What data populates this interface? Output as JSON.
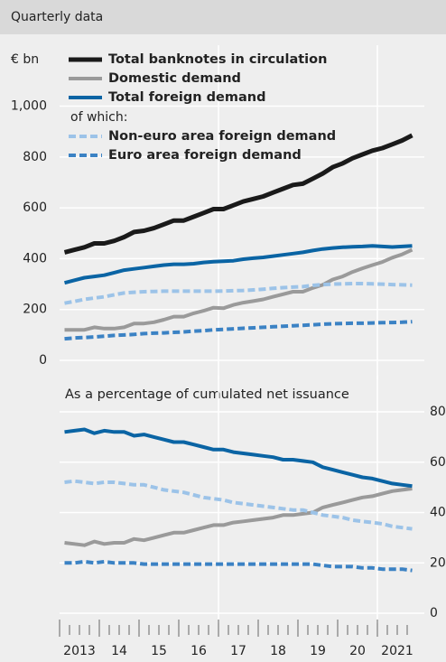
{
  "header": "Quarterly data",
  "chart_data": [
    {
      "type": "line",
      "y_label": "€ bn",
      "legend_note": "of which:",
      "x": [
        2013.125,
        2013.375,
        2013.625,
        2013.875,
        2014.125,
        2014.375,
        2014.625,
        2014.875,
        2015.125,
        2015.375,
        2015.625,
        2015.875,
        2016.125,
        2016.375,
        2016.625,
        2016.875,
        2017.125,
        2017.375,
        2017.625,
        2017.875,
        2018.125,
        2018.375,
        2018.625,
        2018.875,
        2019.125,
        2019.375,
        2019.625,
        2019.875,
        2020.125,
        2020.375,
        2020.625,
        2020.875,
        2021.125,
        2021.375,
        2021.625,
        2021.875
      ],
      "xlim": [
        2013,
        2022
      ],
      "xgrid": [
        2017,
        2021
      ],
      "ylim": [
        0,
        1240
      ],
      "yticks": [
        0,
        200,
        400,
        600,
        800,
        {
          "value": 1000,
          "label": "1,000"
        }
      ],
      "series": [
        {
          "name": "Total banknotes in circulation",
          "color": "#1a1a1a",
          "dash": false,
          "values": [
            425,
            435,
            445,
            460,
            460,
            470,
            485,
            505,
            510,
            520,
            535,
            550,
            550,
            565,
            580,
            595,
            595,
            610,
            625,
            635,
            645,
            660,
            675,
            690,
            695,
            715,
            735,
            760,
            775,
            795,
            810,
            825,
            835,
            850,
            865,
            885
          ]
        },
        {
          "name": "Domestic demand",
          "color": "#9a9a9a",
          "dash": false,
          "values": [
            120,
            120,
            120,
            130,
            125,
            125,
            130,
            145,
            145,
            150,
            160,
            172,
            172,
            185,
            195,
            207,
            205,
            218,
            227,
            233,
            240,
            250,
            260,
            270,
            270,
            285,
            297,
            318,
            330,
            348,
            362,
            375,
            387,
            404,
            417,
            435
          ]
        },
        {
          "name": "Total foreign demand",
          "color": "#0a64a4",
          "dash": false,
          "values": [
            305,
            315,
            325,
            330,
            335,
            345,
            355,
            360,
            365,
            370,
            375,
            378,
            378,
            380,
            385,
            388,
            390,
            392,
            398,
            402,
            405,
            410,
            415,
            420,
            425,
            432,
            438,
            442,
            445,
            447,
            448,
            450,
            448,
            446,
            448,
            450
          ]
        },
        {
          "name": "Non-euro area foreign demand",
          "color": "#9cc3e8",
          "dash": true,
          "values": [
            225,
            232,
            240,
            245,
            250,
            258,
            265,
            268,
            270,
            271,
            272,
            272,
            272,
            272,
            272,
            272,
            273,
            274,
            275,
            277,
            280,
            283,
            286,
            288,
            290,
            295,
            298,
            300,
            301,
            302,
            302,
            301,
            300,
            298,
            297,
            296
          ]
        },
        {
          "name": "Euro area foreign demand",
          "color": "#3b82c4",
          "dash": true,
          "values": [
            85,
            88,
            90,
            92,
            95,
            98,
            100,
            102,
            105,
            107,
            108,
            110,
            112,
            115,
            117,
            120,
            122,
            124,
            126,
            128,
            130,
            132,
            134,
            136,
            138,
            140,
            142,
            144,
            145,
            146,
            146,
            147,
            148,
            149,
            150,
            152
          ]
        }
      ]
    },
    {
      "type": "line",
      "title": "As a percentage of cumulated net issuance",
      "yaxis_side": "right",
      "x": [
        2013.125,
        2013.375,
        2013.625,
        2013.875,
        2014.125,
        2014.375,
        2014.625,
        2014.875,
        2015.125,
        2015.375,
        2015.625,
        2015.875,
        2016.125,
        2016.375,
        2016.625,
        2016.875,
        2017.125,
        2017.375,
        2017.625,
        2017.875,
        2018.125,
        2018.375,
        2018.625,
        2018.875,
        2019.125,
        2019.375,
        2019.625,
        2019.875,
        2020.125,
        2020.375,
        2020.625,
        2020.875,
        2021.125,
        2021.375,
        2021.625,
        2021.875
      ],
      "xlim": [
        2013,
        2022
      ],
      "xgrid": [
        2017,
        2021
      ],
      "xticks": [
        2013,
        {
          "value": 2014,
          "label": "14"
        },
        {
          "value": 2015,
          "label": "15"
        },
        {
          "value": 2016,
          "label": "16"
        },
        {
          "value": 2017,
          "label": "17"
        },
        {
          "value": 2018,
          "label": "18"
        },
        {
          "value": 2019,
          "label": "19"
        },
        {
          "value": 2020,
          "label": "20"
        },
        2021
      ],
      "ylim": [
        0,
        80
      ],
      "yticks": [
        0,
        20,
        40,
        60,
        80
      ],
      "series": [
        {
          "color": "#9a9a9a",
          "dash": false,
          "values": [
            28,
            27.5,
            27,
            28.5,
            27.5,
            28,
            28,
            29.5,
            29,
            30,
            31,
            32,
            32,
            33,
            34,
            35,
            35,
            36,
            36.5,
            37,
            37.5,
            38,
            39,
            39,
            39.5,
            40,
            42,
            43,
            44,
            45,
            46,
            46.5,
            47.5,
            48.5,
            49,
            49.5
          ]
        },
        {
          "color": "#0a64a4",
          "dash": false,
          "values": [
            72,
            72.5,
            73,
            71.5,
            72.5,
            72,
            72,
            70.5,
            71,
            70,
            69,
            68,
            68,
            67,
            66,
            65,
            65,
            64,
            63.5,
            63,
            62.5,
            62,
            61,
            61,
            60.5,
            60,
            58,
            57,
            56,
            55,
            54,
            53.5,
            52.5,
            51.5,
            51,
            50.5
          ]
        },
        {
          "color": "#9cc3e8",
          "dash": true,
          "values": [
            52,
            52.5,
            52,
            51.5,
            52,
            52,
            51.5,
            51,
            51,
            50,
            49,
            48.5,
            48,
            47,
            46,
            45.5,
            45,
            44,
            43.5,
            43,
            42.5,
            42,
            41.5,
            41,
            41,
            40,
            39,
            38.5,
            38,
            37,
            36.5,
            36,
            35.5,
            34.5,
            34,
            33.5
          ]
        },
        {
          "color": "#3b82c4",
          "dash": true,
          "values": [
            20,
            20,
            20.5,
            20,
            20.5,
            20,
            20,
            20,
            19.5,
            19.5,
            19.5,
            19.5,
            19.5,
            19.5,
            19.5,
            19.5,
            19.5,
            19.5,
            19.5,
            19.5,
            19.5,
            19.5,
            19.5,
            19.5,
            19.5,
            19.5,
            19,
            18.5,
            18.5,
            18.5,
            18,
            18,
            17.5,
            17.5,
            17.5,
            17
          ]
        }
      ]
    }
  ]
}
